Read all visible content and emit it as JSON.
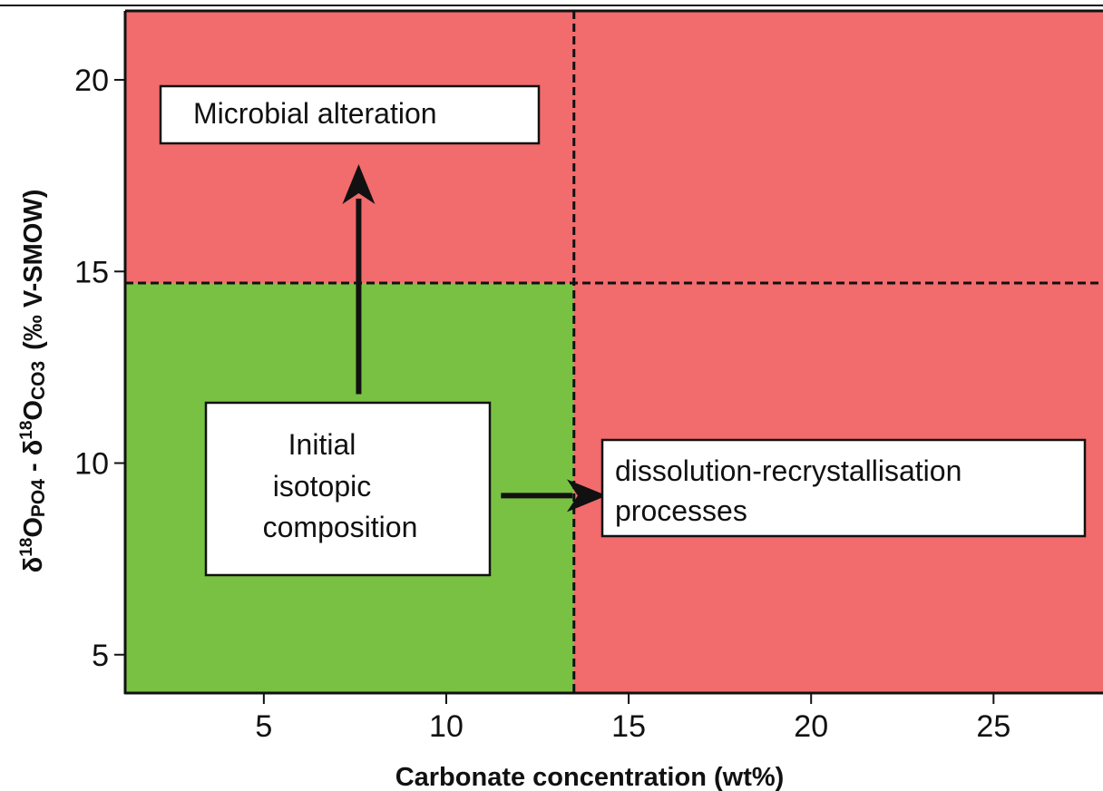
{
  "colors": {
    "red_region": "#f26b6d",
    "green_region": "#79c143",
    "line": "#111111"
  },
  "chart_data": {
    "type": "region-diagram",
    "xlabel": "Carbonate concentration (wt%)",
    "ylabel": {
      "prefix": "δ",
      "sup1": "18",
      "o1": "O",
      "sub1": "PO4",
      "minus": " - δ",
      "sup2": "18",
      "o2": "O",
      "sub2": "CO3",
      "unit": "(‰ V-SMOW)"
    },
    "xlim": [
      1.2,
      28.0
    ],
    "ylim": [
      4.0,
      21.8
    ],
    "x_ticks": [
      5,
      10,
      15,
      20,
      25
    ],
    "y_ticks": [
      5,
      10,
      15,
      20
    ],
    "x_tick_labels": [
      "5",
      "10",
      "15",
      "20",
      "25"
    ],
    "y_tick_labels": [
      "5",
      "10",
      "15",
      "20"
    ],
    "thresholds": {
      "x": 13.5,
      "y": 14.7
    },
    "regions": [
      {
        "name": "unaltered",
        "color": "green",
        "x": [
          1.2,
          13.5
        ],
        "y": [
          4.0,
          14.7
        ]
      },
      {
        "name": "altered",
        "color": "red"
      }
    ],
    "annotations": [
      {
        "id": "microbial",
        "lines": [
          "Microbial alteration"
        ]
      },
      {
        "id": "initial",
        "lines": [
          "Initial",
          "isotopic",
          "composition"
        ]
      },
      {
        "id": "dissolution",
        "lines": [
          "dissolution-recrystallisation",
          "processes"
        ]
      }
    ],
    "arrows": [
      {
        "name": "up-arrow",
        "from": [
          7.6,
          11.8
        ],
        "to": [
          7.6,
          17.8
        ]
      },
      {
        "name": "right-arrow",
        "from": [
          11.5,
          9.15
        ],
        "to": [
          14.4,
          9.15
        ]
      }
    ]
  }
}
